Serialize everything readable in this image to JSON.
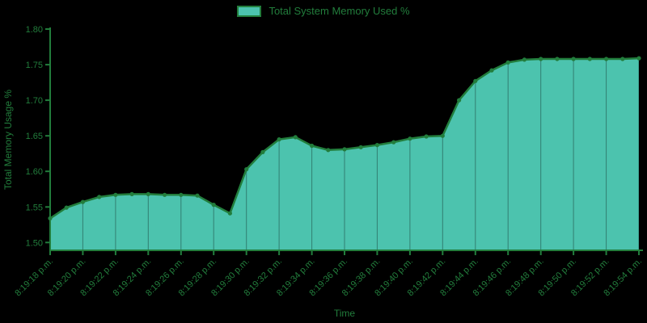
{
  "chart_data": {
    "type": "area",
    "title": "",
    "legend": "Total System Memory Used %",
    "xlabel": "Time",
    "ylabel": "Total Memory Usage %",
    "ylim": [
      1.489,
      1.8
    ],
    "ytick_labels": [
      "1.50",
      "1.55",
      "1.60",
      "1.65",
      "1.70",
      "1.75",
      "1.80"
    ],
    "x_seconds": [
      18,
      19,
      20,
      21,
      22,
      23,
      24,
      25,
      26,
      27,
      28,
      29,
      30,
      31,
      32,
      33,
      34,
      35,
      36,
      37,
      38,
      39,
      40,
      41,
      42,
      43,
      44,
      45,
      46,
      47,
      48,
      49,
      50,
      51,
      52,
      53,
      54
    ],
    "values": [
      1.534,
      1.549,
      1.557,
      1.564,
      1.567,
      1.568,
      1.568,
      1.567,
      1.567,
      1.566,
      1.553,
      1.541,
      1.603,
      1.627,
      1.645,
      1.648,
      1.636,
      1.63,
      1.631,
      1.634,
      1.637,
      1.641,
      1.646,
      1.649,
      1.65,
      1.7,
      1.727,
      1.742,
      1.753,
      1.757,
      1.758,
      1.758,
      1.758,
      1.758,
      1.758,
      1.758,
      1.759
    ],
    "x_ticks": [
      {
        "sec": 18,
        "label": "8:19:18 p.m."
      },
      {
        "sec": 20,
        "label": "8:19:20 p.m."
      },
      {
        "sec": 22,
        "label": "8:19:22 p.m."
      },
      {
        "sec": 24,
        "label": "8:19:24 p.m."
      },
      {
        "sec": 26,
        "label": "8:19:26 p.m."
      },
      {
        "sec": 28,
        "label": "8:19:28 p.m."
      },
      {
        "sec": 30,
        "label": "8:19:30 p.m."
      },
      {
        "sec": 32,
        "label": "8:19:32 p.m."
      },
      {
        "sec": 34,
        "label": "8:19:34 p.m."
      },
      {
        "sec": 36,
        "label": "8:19:36 p.m."
      },
      {
        "sec": 38,
        "label": "8:19:38 p.m."
      },
      {
        "sec": 40,
        "label": "8:19:40 p.m."
      },
      {
        "sec": 42,
        "label": "8:19:42 p.m."
      },
      {
        "sec": 44,
        "label": "8:19:44 p.m."
      },
      {
        "sec": 46,
        "label": "8:19:46 p.m."
      },
      {
        "sec": 48,
        "label": "8:19:48 p.m."
      },
      {
        "sec": 50,
        "label": "8:19:50 p.m."
      },
      {
        "sec": 52,
        "label": "8:19:52 p.m."
      },
      {
        "sec": 54,
        "label": "8:19:54 p.m."
      }
    ],
    "grid": "vertical-only",
    "legend_position": "top-center",
    "colors": {
      "background": "#000000",
      "fill": "#4cc3ae",
      "line": "#227d3c",
      "text": "#227d3c",
      "axis": "#227d3c",
      "gridline": "rgba(0,0,0,0.35)"
    }
  }
}
